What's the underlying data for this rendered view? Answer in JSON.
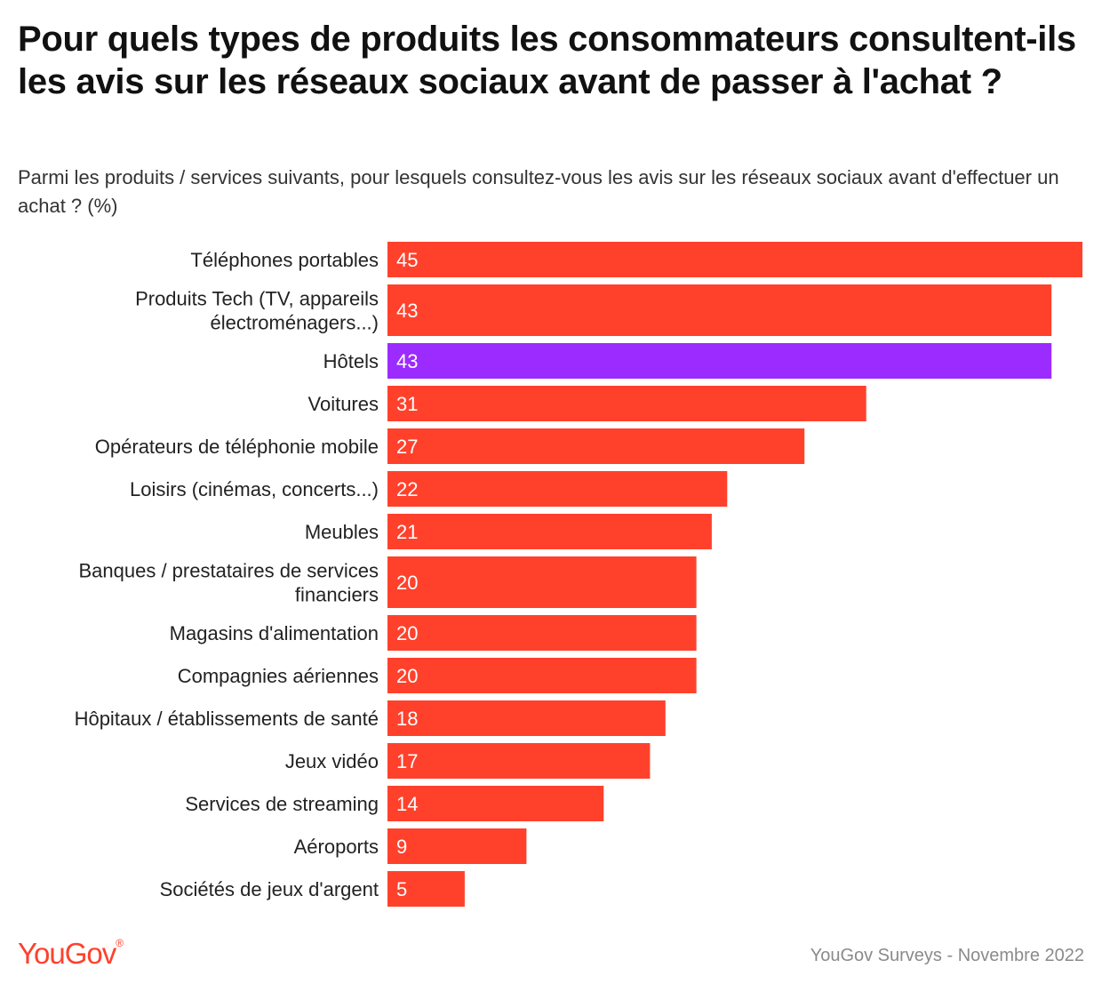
{
  "header": {
    "title": "Pour quels types de produits les consommateurs consultent-ils les avis sur les réseaux sociaux avant de passer à l'achat ?",
    "subtitle": "Parmi les produits / services suivants, pour lesquels consultez-vous les avis sur les réseaux sociaux avant d'effectuer un achat ? (%)"
  },
  "footer": {
    "logo": "YouGov",
    "logo_mark": "®",
    "source": "YouGov Surveys - Novembre 2022"
  },
  "colors": {
    "bar_default": "#ff412c",
    "bar_highlight": "#9b2bff",
    "value_text": "#ffffff"
  },
  "chart_data": {
    "type": "bar",
    "orientation": "horizontal",
    "title": "Pour quels types de produits les consommateurs consultent-ils les avis sur les réseaux sociaux avant de passer à l'achat ?",
    "xlim": [
      0,
      45
    ],
    "grid": false,
    "highlight": [
      "Hôtels"
    ],
    "categories": [
      [
        "Téléphones portables"
      ],
      [
        "Produits Tech (TV, appareils",
        "électroménagers...)"
      ],
      [
        "Hôtels"
      ],
      [
        "Voitures"
      ],
      [
        "Opérateurs de téléphonie mobile"
      ],
      [
        "Loisirs (cinémas, concerts...)"
      ],
      [
        "Meubles"
      ],
      [
        "Banques / prestataires de services",
        "financiers"
      ],
      [
        "Magasins d'alimentation"
      ],
      [
        "Compagnies aériennes"
      ],
      [
        "Hôpitaux / établissements de santé"
      ],
      [
        "Jeux vidéo"
      ],
      [
        "Services de streaming"
      ],
      [
        "Aéroports"
      ],
      [
        "Sociétés de jeux d'argent"
      ]
    ],
    "values": [
      45,
      43,
      43,
      31,
      27,
      22,
      21,
      20,
      20,
      20,
      18,
      17,
      14,
      9,
      5
    ]
  }
}
